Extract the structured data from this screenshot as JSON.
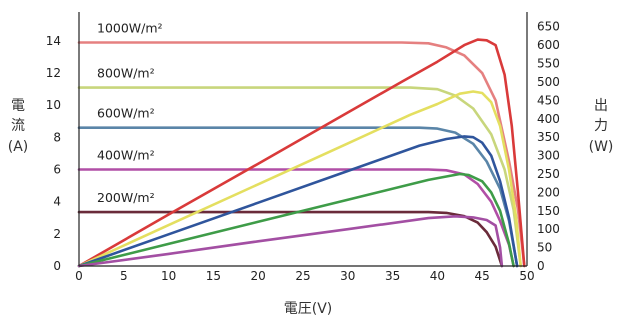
{
  "chart_data": {
    "type": "line",
    "title": "",
    "xlabel": "電圧(V)",
    "ylabel_left": [
      "電",
      "流",
      "(A)"
    ],
    "ylabel_right": [
      "出",
      "力",
      "(W)"
    ],
    "xlim": [
      0,
      50
    ],
    "ylim_left": [
      0,
      15.8
    ],
    "ylim_right": [
      0,
      690
    ],
    "x_ticks": [
      "0",
      "5",
      "10",
      "15",
      "20",
      "25",
      "30",
      "35",
      "40",
      "45",
      "50"
    ],
    "y_left_ticks": [
      "0",
      "2",
      "4",
      "6",
      "8",
      "10",
      "12",
      "14"
    ],
    "y_right_ticks": [
      "0",
      "50",
      "100",
      "150",
      "200",
      "250",
      "300",
      "350",
      "400",
      "450",
      "500",
      "550",
      "600",
      "650"
    ],
    "grid": false,
    "current_series": [
      {
        "name": "1000W/m²",
        "color": "#e58080",
        "points": [
          [
            0,
            13.9
          ],
          [
            36,
            13.9
          ],
          [
            39,
            13.85
          ],
          [
            41,
            13.6
          ],
          [
            43,
            13.1
          ],
          [
            45,
            12.0
          ],
          [
            46.5,
            10.3
          ],
          [
            48,
            6.5
          ],
          [
            49,
            3.5
          ],
          [
            49.7,
            0
          ]
        ]
      },
      {
        "name": "800W/m²",
        "color": "#c8d67c",
        "points": [
          [
            0,
            11.1
          ],
          [
            37,
            11.1
          ],
          [
            40,
            11.0
          ],
          [
            42,
            10.6
          ],
          [
            44,
            9.8
          ],
          [
            46,
            8.2
          ],
          [
            47.5,
            6.0
          ],
          [
            48.5,
            3.5
          ],
          [
            49.3,
            0
          ]
        ]
      },
      {
        "name": "600W/m²",
        "color": "#5a85a8",
        "points": [
          [
            0,
            8.6
          ],
          [
            38,
            8.6
          ],
          [
            40,
            8.55
          ],
          [
            42,
            8.3
          ],
          [
            44,
            7.6
          ],
          [
            45.5,
            6.5
          ],
          [
            47,
            4.8
          ],
          [
            48,
            2.8
          ],
          [
            48.9,
            0
          ]
        ]
      },
      {
        "name": "400W/m²",
        "color": "#b14fa6",
        "points": [
          [
            0,
            6.0
          ],
          [
            39,
            6.0
          ],
          [
            41,
            5.95
          ],
          [
            43,
            5.7
          ],
          [
            44.5,
            5.1
          ],
          [
            46,
            4.0
          ],
          [
            47,
            2.8
          ],
          [
            48,
            1.3
          ],
          [
            48.5,
            0
          ]
        ]
      },
      {
        "name": "200W/m²",
        "color": "#6a2b3a",
        "points": [
          [
            0,
            3.35
          ],
          [
            39,
            3.35
          ],
          [
            41,
            3.3
          ],
          [
            43,
            3.1
          ],
          [
            44.5,
            2.7
          ],
          [
            45.5,
            2.1
          ],
          [
            46.5,
            1.2
          ],
          [
            47.2,
            0
          ]
        ]
      }
    ],
    "power_series": [
      {
        "name": "1000W/m²",
        "color": "#d93a3a",
        "points": [
          [
            0,
            0
          ],
          [
            10,
            140
          ],
          [
            20,
            278
          ],
          [
            30,
            417
          ],
          [
            36,
            500
          ],
          [
            40,
            555
          ],
          [
            43,
            600
          ],
          [
            44.5,
            615
          ],
          [
            45.5,
            613
          ],
          [
            46.5,
            600
          ],
          [
            47.5,
            520
          ],
          [
            48.3,
            380
          ],
          [
            49,
            200
          ],
          [
            49.7,
            0
          ]
        ]
      },
      {
        "name": "800W/m²",
        "color": "#e4df60",
        "points": [
          [
            0,
            0
          ],
          [
            10,
            111
          ],
          [
            20,
            222
          ],
          [
            30,
            333
          ],
          [
            37,
            411
          ],
          [
            40,
            440
          ],
          [
            42.5,
            468
          ],
          [
            44,
            474
          ],
          [
            45,
            470
          ],
          [
            46,
            445
          ],
          [
            47,
            380
          ],
          [
            48,
            260
          ],
          [
            48.8,
            130
          ],
          [
            49.3,
            0
          ]
        ]
      },
      {
        "name": "600W/m²",
        "color": "#2f559c",
        "points": [
          [
            0,
            0
          ],
          [
            10,
            86
          ],
          [
            20,
            172
          ],
          [
            30,
            258
          ],
          [
            38,
            327
          ],
          [
            41,
            345
          ],
          [
            43,
            352
          ],
          [
            44,
            350
          ],
          [
            45,
            335
          ],
          [
            46,
            300
          ],
          [
            47,
            230
          ],
          [
            48,
            130
          ],
          [
            48.9,
            0
          ]
        ]
      },
      {
        "name": "400W/m²",
        "color": "#3e9c48",
        "points": [
          [
            0,
            0
          ],
          [
            10,
            60
          ],
          [
            20,
            120
          ],
          [
            30,
            180
          ],
          [
            39,
            234
          ],
          [
            41,
            243
          ],
          [
            42.5,
            250
          ],
          [
            43.5,
            247
          ],
          [
            45,
            230
          ],
          [
            46,
            200
          ],
          [
            47,
            150
          ],
          [
            48,
            60
          ],
          [
            48.5,
            0
          ]
        ]
      },
      {
        "name": "200W/m²",
        "color": "#a34fa3",
        "points": [
          [
            0,
            0
          ],
          [
            10,
            33
          ],
          [
            20,
            67
          ],
          [
            30,
            100
          ],
          [
            39,
            130
          ],
          [
            42,
            135
          ],
          [
            44,
            132
          ],
          [
            45.5,
            125
          ],
          [
            46.5,
            110
          ],
          [
            47,
            50
          ],
          [
            47.2,
            0
          ]
        ]
      }
    ]
  }
}
